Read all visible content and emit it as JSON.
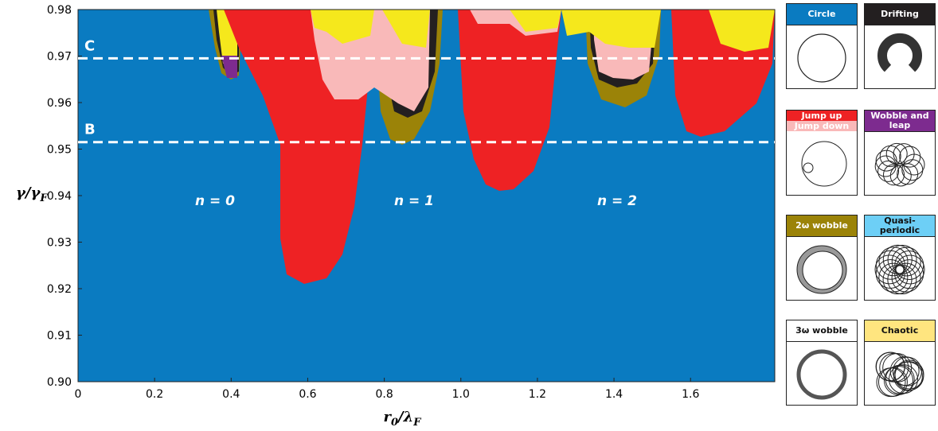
{
  "chart_data": {
    "type": "regime-map",
    "x_label": {
      "main": "r",
      "sub1": "0",
      "mid": "/λ",
      "sub2": "F"
    },
    "y_label": {
      "main": "γ/γ",
      "sub": "F"
    },
    "xlim": [
      0,
      1.82
    ],
    "ylim": [
      0.9,
      0.98
    ],
    "xticks": [
      0,
      0.2,
      0.4,
      0.6,
      0.8,
      {
        "value": 1,
        "label": "1.0"
      },
      1.2,
      1.4,
      1.6
    ],
    "yticks": [
      {
        "value": 0.9,
        "label": "0.90"
      },
      0.91,
      0.92,
      0.93,
      0.94,
      0.95,
      0.96,
      0.97,
      0.98
    ],
    "background_color": "#0a7bc1",
    "reference_lines": [
      {
        "label": "C",
        "value": 0.9695
      },
      {
        "label": "B",
        "value": 0.9515
      }
    ],
    "annotations": [
      "n = 0",
      "n = 1",
      "n = 2"
    ],
    "regimes": [
      {
        "name": "Circle",
        "color": "#0a7bc1"
      },
      {
        "name": "Drifting",
        "color": "#231f20"
      },
      {
        "name": "Jump up",
        "color": "#ee2224"
      },
      {
        "name": "Jump down",
        "color": "#f9b9b9"
      },
      {
        "name": "Wobble and leap",
        "color": "#7d2b8f"
      },
      {
        "name": "2ω wobble",
        "color": "#9b8308"
      },
      {
        "name": "Quasi-periodic",
        "color": "#6dcff6"
      },
      {
        "name": "3ω wobble",
        "color": "#ffffff"
      },
      {
        "name": "Chaotic",
        "color": "#ffe57f"
      }
    ]
  }
}
